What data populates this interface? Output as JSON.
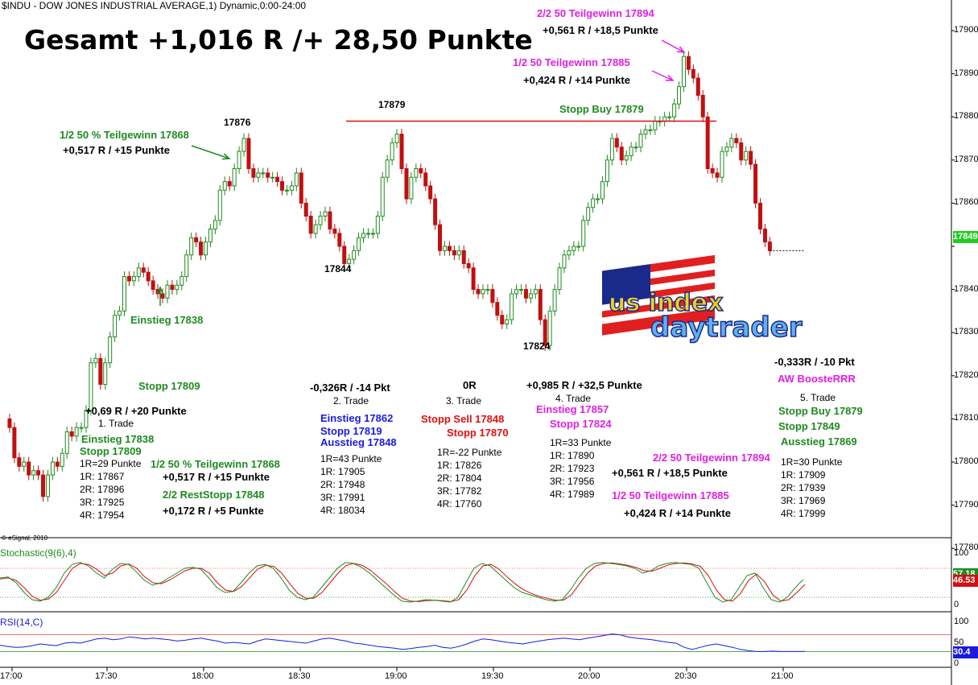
{
  "header": {
    "title": "$INDU - DOW JONES INDUSTRIAL AVERAGE,1) Dynamic,0:00-24:00",
    "headline": "Gesamt +1,016 R /+ 28,50 Punkte",
    "copyright": "© eSignal, 2010"
  },
  "chart_data": {
    "type": "candlestick",
    "y_axis": {
      "min": 17775,
      "max": 17905,
      "ticks": [
        17900,
        17890,
        17880,
        17870,
        17860,
        17850,
        17840,
        17830,
        17820,
        17810,
        17800,
        17790,
        17780
      ],
      "tick_labels": [
        "17900.00",
        "17890.00",
        "17880.00",
        "17870.00",
        "17860.00",
        "17840.00",
        "17830.00",
        "17820.00",
        "17810.00",
        "17800.00",
        "17790.00",
        "17780.00"
      ]
    },
    "x_axis": {
      "labels": [
        "17:00",
        "17:30",
        "18:00",
        "18:30",
        "19:00",
        "19:30",
        "20:00",
        "20:30",
        "21:00"
      ]
    },
    "last_price": "17849.08",
    "close_path": [
      [
        0,
        17810
      ],
      [
        6,
        17808
      ],
      [
        12,
        17801
      ],
      [
        18,
        17799
      ],
      [
        24,
        17800
      ],
      [
        30,
        17797
      ],
      [
        36,
        17798
      ],
      [
        42,
        17797
      ],
      [
        48,
        17792
      ],
      [
        54,
        17797
      ],
      [
        60,
        17800
      ],
      [
        66,
        17799
      ],
      [
        72,
        17802
      ],
      [
        78,
        17807
      ],
      [
        84,
        17806
      ],
      [
        90,
        17808
      ],
      [
        96,
        17808
      ],
      [
        102,
        17812
      ],
      [
        108,
        17823
      ],
      [
        114,
        17824
      ],
      [
        120,
        17818
      ],
      [
        126,
        17823
      ],
      [
        132,
        17829
      ],
      [
        138,
        17834
      ],
      [
        144,
        17835
      ],
      [
        150,
        17843
      ],
      [
        156,
        17842
      ],
      [
        162,
        17843
      ],
      [
        168,
        17845
      ],
      [
        174,
        17844
      ],
      [
        180,
        17842
      ],
      [
        186,
        17840
      ],
      [
        192,
        17839
      ],
      [
        198,
        17838
      ],
      [
        204,
        17841
      ],
      [
        210,
        17840
      ],
      [
        216,
        17841
      ],
      [
        222,
        17843
      ],
      [
        228,
        17848
      ],
      [
        234,
        17852
      ],
      [
        240,
        17851
      ],
      [
        246,
        17848
      ],
      [
        252,
        17851
      ],
      [
        258,
        17854
      ],
      [
        264,
        17856
      ],
      [
        270,
        17863
      ],
      [
        276,
        17865
      ],
      [
        282,
        17864
      ],
      [
        288,
        17868
      ],
      [
        294,
        17872
      ],
      [
        300,
        17875
      ],
      [
        306,
        17868
      ],
      [
        312,
        17866
      ],
      [
        318,
        17867
      ],
      [
        324,
        17867
      ],
      [
        330,
        17866
      ],
      [
        336,
        17866
      ],
      [
        342,
        17865
      ],
      [
        348,
        17863
      ],
      [
        354,
        17863
      ],
      [
        360,
        17864
      ],
      [
        366,
        17867
      ],
      [
        372,
        17860
      ],
      [
        378,
        17857
      ],
      [
        384,
        17853
      ],
      [
        390,
        17855
      ],
      [
        396,
        17857
      ],
      [
        402,
        17858
      ],
      [
        408,
        17854
      ],
      [
        414,
        17853
      ],
      [
        420,
        17850
      ],
      [
        426,
        17846
      ],
      [
        432,
        17847
      ],
      [
        438,
        17849
      ],
      [
        444,
        17852
      ],
      [
        450,
        17853
      ],
      [
        456,
        17853
      ],
      [
        462,
        17853
      ],
      [
        468,
        17857
      ],
      [
        474,
        17866
      ],
      [
        480,
        17870
      ],
      [
        486,
        17874
      ],
      [
        492,
        17876
      ],
      [
        498,
        17868
      ],
      [
        504,
        17861
      ],
      [
        510,
        17866
      ],
      [
        516,
        17868
      ],
      [
        522,
        17867
      ],
      [
        528,
        17864
      ],
      [
        534,
        17861
      ],
      [
        540,
        17855
      ],
      [
        546,
        17849
      ],
      [
        552,
        17850
      ],
      [
        558,
        17849
      ],
      [
        564,
        17848
      ],
      [
        570,
        17849
      ],
      [
        576,
        17846
      ],
      [
        582,
        17845
      ],
      [
        588,
        17840
      ],
      [
        594,
        17839
      ],
      [
        600,
        17840
      ],
      [
        606,
        17840
      ],
      [
        612,
        17837
      ],
      [
        618,
        17834
      ],
      [
        624,
        17832
      ],
      [
        630,
        17833
      ],
      [
        636,
        17839
      ],
      [
        642,
        17840
      ],
      [
        648,
        17840
      ],
      [
        654,
        17838
      ],
      [
        660,
        17839
      ],
      [
        666,
        17840
      ],
      [
        672,
        17833
      ],
      [
        678,
        17827
      ],
      [
        684,
        17835
      ],
      [
        690,
        17840
      ],
      [
        696,
        17845
      ],
      [
        702,
        17848
      ],
      [
        708,
        17849
      ],
      [
        714,
        17850
      ],
      [
        720,
        17850
      ],
      [
        726,
        17856
      ],
      [
        732,
        17859
      ],
      [
        738,
        17861
      ],
      [
        744,
        17861
      ],
      [
        750,
        17865
      ],
      [
        756,
        17870
      ],
      [
        762,
        17875
      ],
      [
        768,
        17873
      ],
      [
        774,
        17870
      ],
      [
        780,
        17871
      ],
      [
        786,
        17873
      ],
      [
        792,
        17873
      ],
      [
        798,
        17876
      ],
      [
        804,
        17877
      ],
      [
        810,
        17877
      ],
      [
        816,
        17879
      ],
      [
        822,
        17879
      ],
      [
        828,
        17880
      ],
      [
        834,
        17880
      ],
      [
        840,
        17883
      ],
      [
        846,
        17887
      ],
      [
        852,
        17894
      ],
      [
        858,
        17891
      ],
      [
        864,
        17889
      ],
      [
        870,
        17885
      ],
      [
        876,
        17880
      ],
      [
        882,
        17868
      ],
      [
        888,
        17867
      ],
      [
        894,
        17866
      ],
      [
        900,
        17872
      ],
      [
        906,
        17873
      ],
      [
        912,
        17875
      ],
      [
        918,
        17874
      ],
      [
        924,
        17870
      ],
      [
        930,
        17872
      ],
      [
        936,
        17869
      ],
      [
        942,
        17860
      ],
      [
        948,
        17854
      ],
      [
        954,
        17851
      ],
      [
        960,
        17849
      ]
    ],
    "horizontal_lines": [
      {
        "label": "17879",
        "value": 17879
      }
    ],
    "point_labels": [
      {
        "text": "17876",
        "x_index": 300,
        "value": 17876
      },
      {
        "text": "17879",
        "x_index": 492,
        "value": 17879
      },
      {
        "text": "17844",
        "x_index": 426,
        "value": 17844
      },
      {
        "text": "17824",
        "x_index": 678,
        "value": 17824
      }
    ],
    "indicators": [
      {
        "name": "Stochastic(9(6),4)",
        "scale": [
          0,
          100
        ],
        "ticks": [
          "100",
          "50",
          "0"
        ],
        "last_values": [
          "57.18",
          "46.53"
        ],
        "series_k": [
          60,
          62,
          50,
          30,
          15,
          12,
          20,
          40,
          70,
          88,
          92,
          85,
          70,
          60,
          78,
          90,
          88,
          72,
          55,
          45,
          50,
          60,
          70,
          80,
          82,
          78,
          60,
          40,
          30,
          32,
          50,
          70,
          85,
          88,
          80,
          60,
          35,
          20,
          15,
          20,
          40,
          60,
          80,
          92,
          90,
          82,
          70,
          55,
          40,
          25,
          12,
          10,
          12,
          15,
          14,
          12,
          10,
          20,
          50,
          80,
          90,
          85,
          70,
          55,
          40,
          30,
          25,
          20,
          15,
          12,
          15,
          35,
          60,
          80,
          90,
          92,
          90,
          88,
          85,
          80,
          70,
          75,
          85,
          90,
          92,
          90,
          88,
          80,
          50,
          20,
          10,
          15,
          40,
          65,
          70,
          40,
          15,
          10,
          20,
          40,
          57
        ],
        "series_d": [
          58,
          60,
          55,
          40,
          22,
          14,
          16,
          30,
          55,
          80,
          90,
          88,
          78,
          65,
          70,
          85,
          89,
          80,
          62,
          50,
          48,
          55,
          65,
          75,
          80,
          80,
          70,
          50,
          35,
          32,
          42,
          60,
          78,
          86,
          84,
          70,
          48,
          28,
          18,
          18,
          30,
          50,
          70,
          86,
          90,
          86,
          76,
          62,
          48,
          32,
          18,
          12,
          11,
          13,
          14,
          13,
          11,
          15,
          35,
          65,
          85,
          88,
          78,
          62,
          48,
          36,
          28,
          22,
          18,
          14,
          14,
          25,
          48,
          70,
          85,
          90,
          91,
          89,
          86,
          82,
          75,
          74,
          80,
          87,
          90,
          91,
          89,
          84,
          65,
          35,
          15,
          12,
          28,
          55,
          68,
          52,
          25,
          12,
          15,
          30,
          46.53
        ]
      },
      {
        "name": "RSI(14,C)",
        "scale": [
          0,
          100
        ],
        "ticks": [
          "100",
          "50",
          "0"
        ],
        "last_value": "30.4",
        "series": [
          45,
          42,
          40,
          41,
          44,
          48,
          46,
          44,
          50,
          52,
          50,
          55,
          60,
          62,
          58,
          60,
          65,
          63,
          60,
          62,
          60,
          58,
          55,
          57,
          60,
          62,
          58,
          55,
          50,
          52,
          50,
          48,
          55,
          60,
          58,
          56,
          54,
          52,
          50,
          55,
          60,
          62,
          58,
          55,
          50,
          48,
          45,
          42,
          40,
          38,
          35,
          37,
          40,
          42,
          45,
          40,
          38,
          42,
          48,
          55,
          60,
          58,
          55,
          52,
          50,
          48,
          52,
          55,
          58,
          60,
          62,
          60,
          58,
          62,
          65,
          68,
          72,
          70,
          65,
          62,
          60,
          58,
          55,
          52,
          50,
          40,
          35,
          40,
          45,
          48,
          44,
          40,
          35,
          32,
          30,
          30,
          31,
          30,
          30,
          30,
          30.4
        ]
      }
    ]
  },
  "annotations": {
    "top_left_target": {
      "line1": "1/2 50 % Teilgewinn 17868",
      "line2": "+0,517 R / +15 Punkte"
    },
    "entry_marker": "Einstieg 17838",
    "stop_buy_line": "Stopp Buy 17879",
    "top_target_1": "2/2 50 Teilgewinn 17894",
    "top_target_1_r": "+0,561 R / +18,5 Punkte",
    "top_target_2": "1/2 50 Teilgewinn 17885",
    "top_target_2_r": "+0,424 R / +14 Punkte",
    "logo_text_1": "us index",
    "logo_text_2": "daytrader"
  },
  "trades": {
    "t1": {
      "stopp_top": "Stopp 17809",
      "result": "+0,69 R / +20 Punkte",
      "label": "1. Trade",
      "entry": "Einstieg 17838",
      "stop": "Stopp 17809",
      "r_lines": [
        "1R=29 Punkte",
        "1R: 17867",
        "2R: 17896",
        "3R: 17925",
        "4R: 17954"
      ],
      "partial_1": "1/2 50 % Teilgewinn 17868",
      "partial_1_r": "+0,517 R / +15 Punkte",
      "partial_2": "2/2 RestStopp 17848",
      "partial_2_r": "+0,172 R / +5 Punkte"
    },
    "t2": {
      "result": "-0,326R / -14 Pkt",
      "label": "2. Trade",
      "entry": "Einstieg 17862",
      "stop": "Stopp 17819",
      "exit": "Ausstieg 17848",
      "r_lines": [
        "1R=43 Punkte",
        "1R: 17905",
        "2R: 17948",
        "3R: 17991",
        "4R: 18034"
      ]
    },
    "t3": {
      "result": "0R",
      "label": "3. Trade",
      "entry": "Stopp Sell 17848",
      "stop": "Stopp 17870",
      "r_lines": [
        "1R=-22 Punkte",
        "1R: 17826",
        "2R: 17804",
        "3R: 17782",
        "4R: 17760"
      ]
    },
    "t4": {
      "result": "+0,985 R / +32,5 Punkte",
      "label": "4. Trade",
      "entry": "Einstieg 17857",
      "stop": "Stopp 17824",
      "r_lines": [
        "1R=33 Punkte",
        "1R: 17890",
        "2R: 17923",
        "3R: 17956",
        "4R: 17989"
      ],
      "partial_1": "2/2 50 Teilgewinn 17894",
      "partial_1_r": "+0,561 R / +18,5 Punkte",
      "partial_2": "1/2 50 Teilgewinn 17885",
      "partial_2_r": "+0,424 R / +14 Punkte"
    },
    "t5": {
      "result": "-0,333R / -10 Pkt",
      "tag": "AW BoosteRRR",
      "label": "5. Trade",
      "entry": "Stopp Buy 17879",
      "stop": "Stopp 17849",
      "exit": "Ausstieg 17869",
      "r_lines": [
        "1R=30 Punkte",
        "1R: 17909",
        "2R: 17939",
        "3R: 17969",
        "4R: 17999"
      ]
    }
  },
  "colors": {
    "up": "#1f8a1f",
    "down": "#c01010",
    "stop_line": "#e01010",
    "stoch_k": "#1f8a1f",
    "stoch_d": "#d01010",
    "rsi": "#1a1ae0",
    "price_badge": "#22cc22",
    "stoch_badge_k": "#1f8a1f",
    "stoch_badge_d": "#d01010",
    "rsi_badge": "#1a1ae0"
  }
}
